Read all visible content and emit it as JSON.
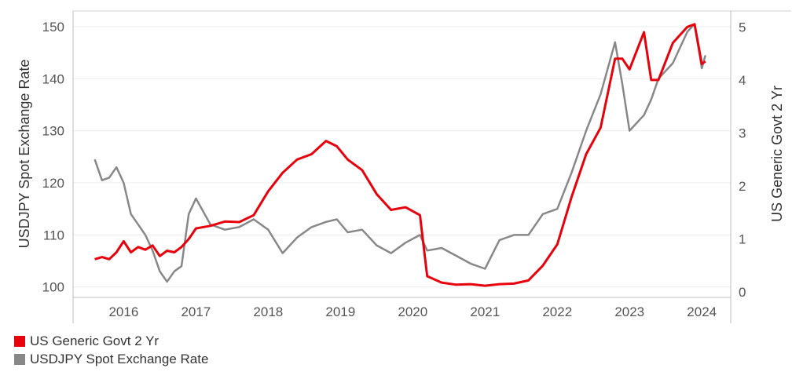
{
  "chart_data": {
    "type": "line",
    "title": "",
    "x_ticks": [
      "2016",
      "2017",
      "2018",
      "2019",
      "2020",
      "2021",
      "2022",
      "2023",
      "2024"
    ],
    "y_left": {
      "label": "USDJPY Spot Exchange Rate",
      "ticks": [
        "100",
        "110",
        "120",
        "130",
        "140",
        "150"
      ],
      "range": [
        98,
        153
      ]
    },
    "y_right": {
      "label": "US Generic Govt 2 Yr",
      "ticks": [
        "0",
        "1",
        "2",
        "3",
        "4",
        "5"
      ],
      "range": [
        -0.1,
        5.3
      ]
    },
    "x_range": [
      2015.3,
      2024.4
    ],
    "grid": true,
    "legend_position": "bottom-left",
    "series": [
      {
        "name": "US Generic Govt 2 Yr",
        "axis": "right",
        "color": "#e8000b",
        "points": [
          [
            2015.6,
            0.62
          ],
          [
            2015.7,
            0.66
          ],
          [
            2015.8,
            0.62
          ],
          [
            2015.9,
            0.75
          ],
          [
            2016.0,
            0.96
          ],
          [
            2016.1,
            0.75
          ],
          [
            2016.2,
            0.85
          ],
          [
            2016.3,
            0.8
          ],
          [
            2016.4,
            0.88
          ],
          [
            2016.5,
            0.68
          ],
          [
            2016.6,
            0.78
          ],
          [
            2016.7,
            0.75
          ],
          [
            2016.8,
            0.85
          ],
          [
            2016.9,
            1.0
          ],
          [
            2017.0,
            1.2
          ],
          [
            2017.2,
            1.25
          ],
          [
            2017.4,
            1.33
          ],
          [
            2017.6,
            1.32
          ],
          [
            2017.8,
            1.45
          ],
          [
            2018.0,
            1.9
          ],
          [
            2018.2,
            2.25
          ],
          [
            2018.4,
            2.5
          ],
          [
            2018.6,
            2.6
          ],
          [
            2018.8,
            2.85
          ],
          [
            2018.95,
            2.75
          ],
          [
            2019.1,
            2.5
          ],
          [
            2019.3,
            2.3
          ],
          [
            2019.5,
            1.85
          ],
          [
            2019.7,
            1.55
          ],
          [
            2019.9,
            1.6
          ],
          [
            2020.1,
            1.45
          ],
          [
            2020.2,
            0.3
          ],
          [
            2020.4,
            0.18
          ],
          [
            2020.6,
            0.14
          ],
          [
            2020.8,
            0.15
          ],
          [
            2021.0,
            0.12
          ],
          [
            2021.2,
            0.15
          ],
          [
            2021.4,
            0.16
          ],
          [
            2021.6,
            0.22
          ],
          [
            2021.8,
            0.5
          ],
          [
            2022.0,
            0.9
          ],
          [
            2022.2,
            1.8
          ],
          [
            2022.4,
            2.6
          ],
          [
            2022.6,
            3.1
          ],
          [
            2022.8,
            4.4
          ],
          [
            2022.9,
            4.4
          ],
          [
            2023.0,
            4.2
          ],
          [
            2023.2,
            4.9
          ],
          [
            2023.3,
            4.0
          ],
          [
            2023.4,
            4.0
          ],
          [
            2023.6,
            4.7
          ],
          [
            2023.8,
            5.0
          ],
          [
            2023.9,
            5.05
          ],
          [
            2024.0,
            4.3
          ],
          [
            2024.05,
            4.35
          ]
        ]
      },
      {
        "name": "USDJPY Spot Exchange Rate",
        "axis": "left",
        "color": "#888888",
        "points": [
          [
            2015.6,
            124.5
          ],
          [
            2015.7,
            120.5
          ],
          [
            2015.8,
            121.0
          ],
          [
            2015.9,
            123.0
          ],
          [
            2016.0,
            120.0
          ],
          [
            2016.1,
            114.0
          ],
          [
            2016.2,
            112.0
          ],
          [
            2016.3,
            110.0
          ],
          [
            2016.4,
            107.0
          ],
          [
            2016.5,
            103.0
          ],
          [
            2016.6,
            101.0
          ],
          [
            2016.7,
            103.0
          ],
          [
            2016.8,
            104.0
          ],
          [
            2016.9,
            114.0
          ],
          [
            2017.0,
            117.0
          ],
          [
            2017.2,
            112.0
          ],
          [
            2017.4,
            111.0
          ],
          [
            2017.6,
            111.5
          ],
          [
            2017.8,
            113.0
          ],
          [
            2018.0,
            111.0
          ],
          [
            2018.2,
            106.5
          ],
          [
            2018.4,
            109.5
          ],
          [
            2018.6,
            111.5
          ],
          [
            2018.8,
            112.5
          ],
          [
            2018.95,
            113.0
          ],
          [
            2019.1,
            110.5
          ],
          [
            2019.3,
            111.0
          ],
          [
            2019.5,
            108.0
          ],
          [
            2019.7,
            106.5
          ],
          [
            2019.9,
            108.5
          ],
          [
            2020.1,
            110.0
          ],
          [
            2020.2,
            107.0
          ],
          [
            2020.4,
            107.5
          ],
          [
            2020.6,
            106.0
          ],
          [
            2020.8,
            104.5
          ],
          [
            2021.0,
            103.5
          ],
          [
            2021.2,
            109.0
          ],
          [
            2021.4,
            110.0
          ],
          [
            2021.6,
            110.0
          ],
          [
            2021.8,
            114.0
          ],
          [
            2022.0,
            115.0
          ],
          [
            2022.2,
            122.0
          ],
          [
            2022.4,
            130.0
          ],
          [
            2022.6,
            137.0
          ],
          [
            2022.8,
            147.0
          ],
          [
            2022.9,
            139.0
          ],
          [
            2023.0,
            130.0
          ],
          [
            2023.2,
            133.0
          ],
          [
            2023.3,
            136.0
          ],
          [
            2023.4,
            140.0
          ],
          [
            2023.6,
            143.0
          ],
          [
            2023.8,
            149.0
          ],
          [
            2023.9,
            150.5
          ],
          [
            2024.0,
            142.0
          ],
          [
            2024.05,
            144.5
          ]
        ]
      }
    ]
  }
}
